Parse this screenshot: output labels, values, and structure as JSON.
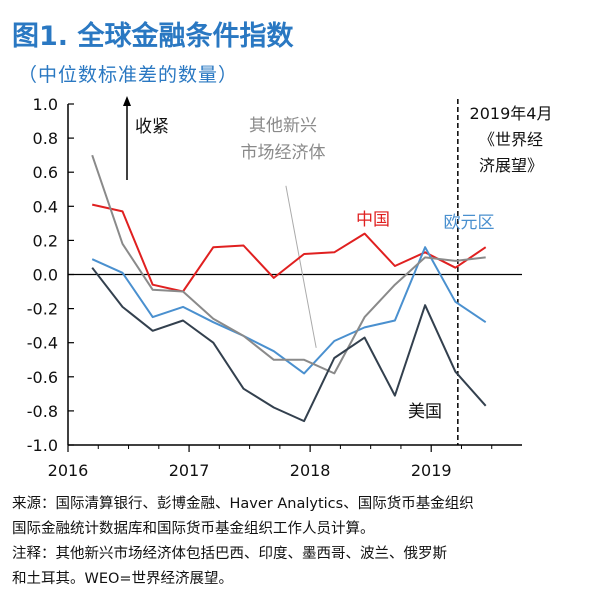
{
  "title": "图1. 全球金融条件指数",
  "subtitle": "（中位数标准差的数量）",
  "notes": {
    "source_line1": "来源：国际清算银行、彭博金融、Haver Analytics、国际货币基金组织",
    "source_line2": "国际金融统计数据库和国际货币基金组织工作人员计算。",
    "note_line1": "注释：其他新兴市场经济体包括巴西、印度、墨西哥、波兰、俄罗斯",
    "note_line2": "和土耳其。WEO=世界经济展望。"
  },
  "chart_data": {
    "type": "line",
    "title": "图1. 全球金融条件指数",
    "subtitle": "（中位数标准差的数量）",
    "xlabel": "",
    "ylabel": "",
    "x_ticks": [
      "2016",
      "2017",
      "2018",
      "2019"
    ],
    "x_tick_values": [
      2016.0,
      2017.0,
      2018.0,
      2019.0
    ],
    "xlim": [
      2016.0,
      2019.75
    ],
    "ylim": [
      -1.0,
      1.0
    ],
    "y_ticks": [
      1.0,
      0.8,
      0.6,
      0.4,
      0.2,
      0.0,
      -0.2,
      -0.4,
      -0.6,
      -0.8,
      -1.0
    ],
    "y_tick_labels": [
      "1.0",
      "0.8",
      "0.6",
      "0.4",
      "0.2",
      "0.0",
      "-0.2",
      "-0.4",
      "-0.6",
      "-0.8",
      "-1.0"
    ],
    "grid": false,
    "series": [
      {
        "name": "中国",
        "color": "#e02020",
        "x": [
          2016.2,
          2016.45,
          2016.7,
          2016.95,
          2017.2,
          2017.45,
          2017.7,
          2017.95,
          2018.2,
          2018.45,
          2018.7,
          2018.95,
          2019.2,
          2019.45
        ],
        "y": [
          0.41,
          0.37,
          -0.06,
          -0.1,
          0.16,
          0.17,
          -0.02,
          0.12,
          0.13,
          0.24,
          0.05,
          0.13,
          0.04,
          0.16
        ]
      },
      {
        "name": "欧元区",
        "color": "#4a90cf",
        "x": [
          2016.2,
          2016.45,
          2016.7,
          2016.95,
          2017.2,
          2017.45,
          2017.7,
          2017.95,
          2018.2,
          2018.45,
          2018.7,
          2018.95,
          2019.2,
          2019.45
        ],
        "y": [
          0.09,
          0.01,
          -0.25,
          -0.19,
          -0.28,
          -0.36,
          -0.45,
          -0.58,
          -0.39,
          -0.31,
          -0.27,
          0.16,
          -0.16,
          -0.28
        ]
      },
      {
        "name": "其他新兴市场经济体",
        "color": "#8a8a8a",
        "x": [
          2016.2,
          2016.45,
          2016.7,
          2016.95,
          2017.2,
          2017.45,
          2017.7,
          2017.95,
          2018.2,
          2018.45,
          2018.7,
          2018.95,
          2019.2,
          2019.45
        ],
        "y": [
          0.7,
          0.18,
          -0.09,
          -0.1,
          -0.26,
          -0.36,
          -0.5,
          -0.5,
          -0.58,
          -0.25,
          -0.06,
          0.1,
          0.08,
          0.1
        ]
      },
      {
        "name": "美国",
        "color": "#33404e",
        "x": [
          2016.2,
          2016.45,
          2016.7,
          2016.95,
          2017.2,
          2017.45,
          2017.7,
          2017.95,
          2018.2,
          2018.45,
          2018.7,
          2018.95,
          2019.2,
          2019.45
        ],
        "y": [
          0.04,
          -0.19,
          -0.33,
          -0.27,
          -0.4,
          -0.67,
          -0.78,
          -0.86,
          -0.49,
          -0.37,
          -0.71,
          -0.18,
          -0.57,
          -0.77
        ]
      }
    ],
    "annotations": {
      "tightening": "收紧",
      "other_em": [
        "其他新兴",
        "市场经济体"
      ],
      "weo": [
        "2019年4月",
        "《世界经",
        "济展望》"
      ],
      "weo_x": 2019.22,
      "other_em_pointer": {
        "from": [
          2017.8,
          0.52
        ],
        "to": [
          2018.05,
          -0.43
        ]
      }
    }
  }
}
